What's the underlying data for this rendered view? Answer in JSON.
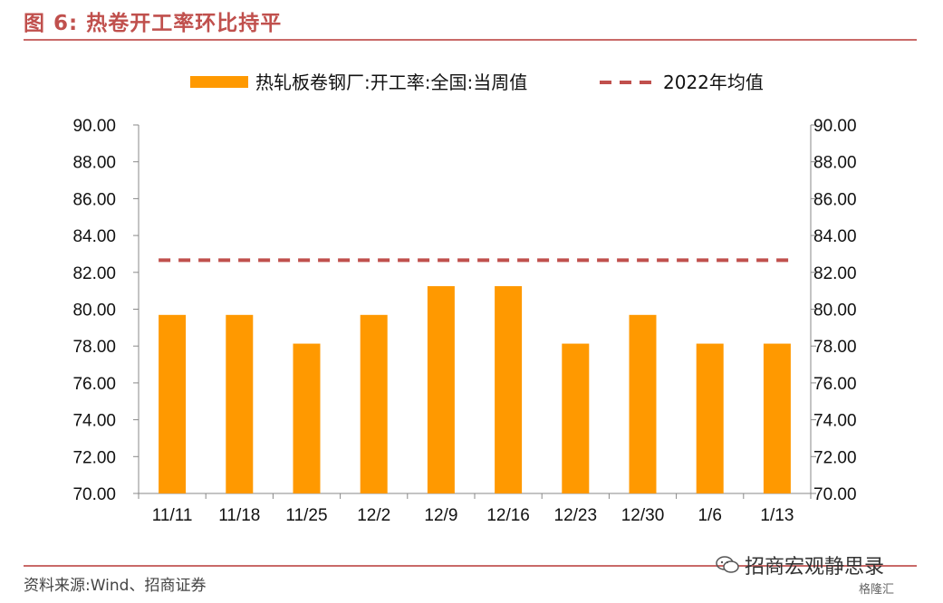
{
  "figure": {
    "title": "图 6:  热卷开工率环比持平",
    "source": "资料来源:Wind、招商证券",
    "watermark": "招商宏观静思录",
    "watermark_badge": "格隆汇"
  },
  "colors": {
    "bar": "#ff9900",
    "avg_line": "#c0504d",
    "rule": "#c0504d",
    "axis": "#888888"
  },
  "chart_data": {
    "type": "bar",
    "categories": [
      "11/11",
      "11/18",
      "11/25",
      "12/2",
      "12/9",
      "12/16",
      "12/23",
      "12/30",
      "1/6",
      "1/13"
    ],
    "series": [
      {
        "name": "热轧板卷钢厂:开工率:全国:当周值",
        "type": "bar",
        "values": [
          79.69,
          79.69,
          78.13,
          79.69,
          81.25,
          81.25,
          78.13,
          79.69,
          78.13,
          78.13
        ]
      },
      {
        "name": "2022年均值",
        "type": "dashed-line",
        "values": [
          82.66,
          82.66,
          82.66,
          82.66,
          82.66,
          82.66,
          82.66,
          82.66,
          82.66,
          82.66
        ]
      }
    ],
    "ylim": [
      70,
      90
    ],
    "y_ticks": [
      "90.00",
      "88.00",
      "86.00",
      "84.00",
      "82.00",
      "80.00",
      "78.00",
      "76.00",
      "74.00",
      "72.00",
      "70.00"
    ],
    "y2_ticks": [
      "90.00",
      "88.00",
      "86.00",
      "84.00",
      "82.00",
      "80.00",
      "78.00",
      "76.00",
      "74.00",
      "72.00",
      "70.00"
    ],
    "legend_position": "top",
    "grid": false
  }
}
